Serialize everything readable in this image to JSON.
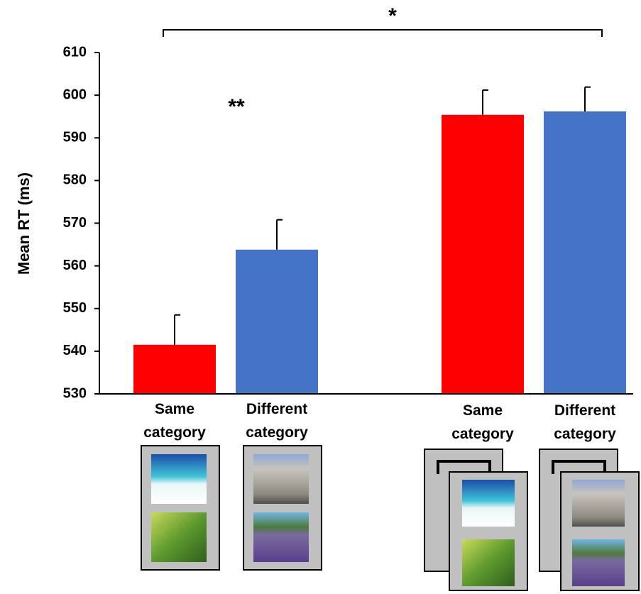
{
  "chart_data": {
    "type": "bar",
    "y_label": "Mean RT (ms)",
    "categories": [
      "Same category",
      "Different category",
      "Same category",
      "Different category"
    ],
    "values": [
      541.5,
      563.8,
      595.4,
      596.2
    ],
    "errors": [
      7,
      7,
      5.8,
      5.7
    ],
    "colors": [
      "#ff0000",
      "#4472c4",
      "#ff0000",
      "#4472c4"
    ],
    "ylim": [
      530,
      610
    ],
    "yticks": [
      530,
      540,
      550,
      560,
      570,
      580,
      590,
      600,
      610
    ],
    "annotations": [
      "*",
      "**"
    ]
  }
}
